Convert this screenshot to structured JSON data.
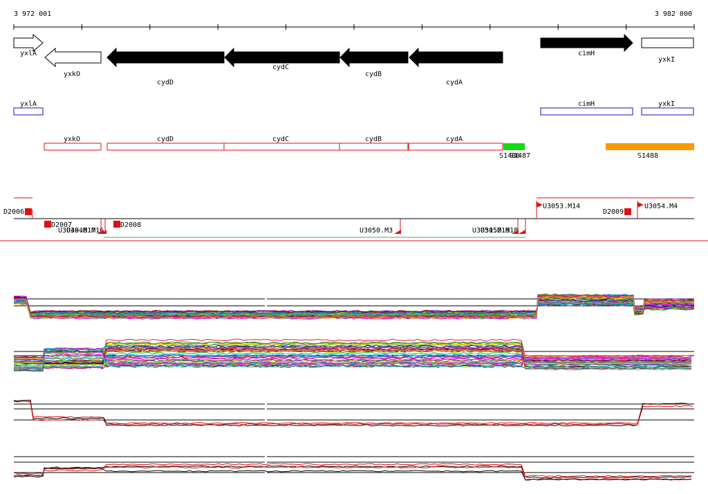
{
  "ruler": {
    "start_label": "3 972 001",
    "end_label": "3 982 000",
    "tick_count": 10
  },
  "colors": {
    "line": "#000000",
    "gene_fill": "#000000",
    "gene_outline": "#000000",
    "track_blue": "#1010b0",
    "track_red": "#dd1111",
    "green_block": "#11dd11",
    "orange_block": "#ff9900",
    "profile_palette": [
      "#e6194b",
      "#3cb44b",
      "#4363d8",
      "#f58231",
      "#911eb4",
      "#46f0f0",
      "#f032e6",
      "#bcf60c",
      "#008080",
      "#9a6324",
      "#800000",
      "#808000",
      "#000075",
      "#ff00ff",
      "#00aaff",
      "#ffd700",
      "#228b22",
      "#cc0066"
    ]
  },
  "genes": [
    {
      "id": "yxlA",
      "label": "yxlA",
      "strand": "+",
      "filled": false,
      "label_pos": "below"
    },
    {
      "id": "yxkO",
      "label": "yxkO",
      "strand": "-",
      "filled": false,
      "label_pos": "below"
    },
    {
      "id": "cydD",
      "label": "cydD",
      "strand": "-",
      "filled": true,
      "label_pos": "below"
    },
    {
      "id": "cydC",
      "label": "cydC",
      "strand": "-",
      "filled": true,
      "label_pos": "below"
    },
    {
      "id": "cydB",
      "label": "cydB",
      "strand": "-",
      "filled": true,
      "label_pos": "below"
    },
    {
      "id": "cydA",
      "label": "cydA",
      "strand": "-",
      "filled": true,
      "label_pos": "below"
    },
    {
      "id": "cimH",
      "label": "cimH",
      "strand": "+",
      "filled": true,
      "label_pos": "below"
    },
    {
      "id": "yxkI",
      "label": "yxkI",
      "strand": "+",
      "filled": false,
      "label_pos": "below"
    }
  ],
  "blue_track": [
    {
      "id": "yxlA",
      "label": "yxlA"
    },
    {
      "id": "cimH",
      "label": "cimH"
    },
    {
      "id": "yxkI",
      "label": "yxkI"
    }
  ],
  "red_track": [
    {
      "id": "yxkO",
      "label": "yxkO"
    },
    {
      "id": "cydD",
      "label": "cydD"
    },
    {
      "id": "cydC",
      "label": "cydC"
    },
    {
      "id": "cydB",
      "label": "cydB"
    },
    {
      "id": "cydA",
      "label": "cydA"
    }
  ],
  "blocks": [
    {
      "id": "S1486",
      "label": "S1486",
      "color": "green"
    },
    {
      "id": "S1487",
      "label": "S1487",
      "color": "green"
    },
    {
      "id": "S1488",
      "label": "S1488",
      "color": "orange"
    }
  ],
  "features": [
    {
      "id": "D2006",
      "label": "D2006"
    },
    {
      "id": "D2007",
      "label": "D2007"
    },
    {
      "id": "U3049.M17",
      "label": "U3049.M17"
    },
    {
      "id": "U3048.M16",
      "label": "U3048.M16"
    },
    {
      "id": "D2008",
      "label": "D2008"
    },
    {
      "id": "U3050.M3",
      "label": "U3050.M3"
    },
    {
      "id": "U3051.M19",
      "label": "U3051.M19"
    },
    {
      "id": "U3052.M18",
      "label": "U3052.M18"
    },
    {
      "id": "U3053.M14",
      "label": "U3053.M14"
    },
    {
      "id": "D2009",
      "label": "D2009"
    },
    {
      "id": "U3054.M4",
      "label": "U3054.M4"
    }
  ],
  "profile_panels": [
    {
      "id": "panel-1",
      "line_count": 40
    },
    {
      "id": "panel-2",
      "line_count": 45
    },
    {
      "id": "panel-3",
      "line_count": 3
    },
    {
      "id": "panel-4",
      "line_count": 4
    }
  ]
}
